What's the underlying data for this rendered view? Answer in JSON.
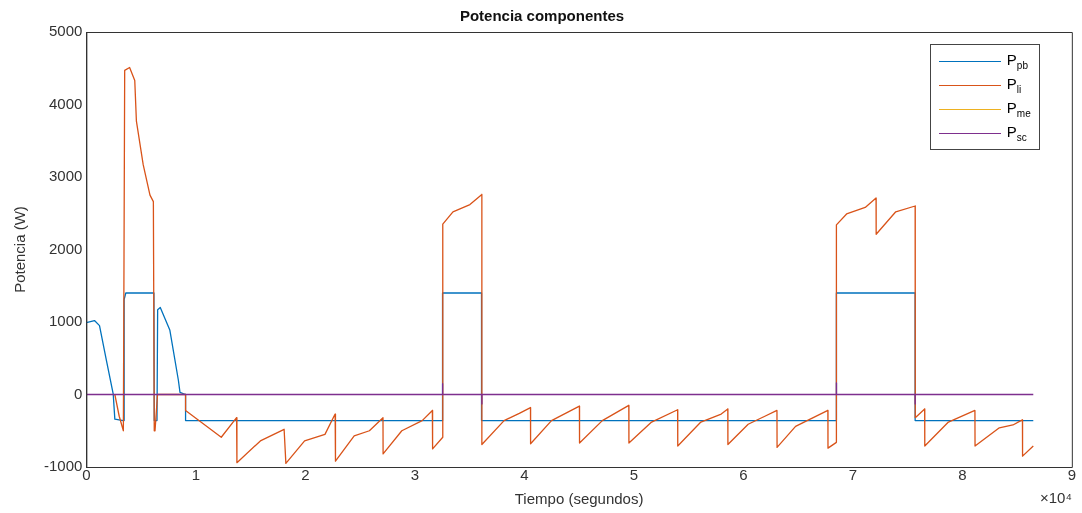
{
  "chart_data": {
    "type": "line",
    "title": "Potencia componentes",
    "xlabel": "Tiempo (segundos)",
    "ylabel": "Potencia (W)",
    "xlim": [
      0,
      9
    ],
    "xticks": [
      0,
      1,
      2,
      3,
      4,
      5,
      6,
      7,
      8,
      9
    ],
    "ylim": [
      -1000,
      5000
    ],
    "yticks": [
      -1000,
      0,
      1000,
      2000,
      3000,
      4000,
      5000
    ],
    "annotations": [
      "×10⁴"
    ],
    "grid": false,
    "legend": "top right",
    "marker": "none",
    "line_style": "solid",
    "series": [
      {
        "name": "P$_{pb}$",
        "color": "#0072bd",
        "x": [
          0,
          0.074,
          0.12,
          0.183,
          0.245,
          0.26,
          0.338,
          0.345,
          0.345,
          0.36,
          0.617,
          0.62,
          0.645,
          0.651,
          0.675,
          0.762,
          0.84,
          0.855,
          0.906,
          0.906,
          3.253,
          3.253,
          3.609,
          3.609,
          6.85,
          6.85,
          7.569,
          7.569,
          8.648
        ],
        "values": [
          990,
          1020,
          950,
          470,
          10,
          -340,
          -360,
          -360,
          1310,
          1400,
          1400,
          -360,
          -360,
          1170,
          1200,
          890,
          200,
          30,
          0,
          -360,
          -360,
          1400,
          1400,
          -360,
          -360,
          1400,
          1400,
          -360,
          -360
        ]
      },
      {
        "name": "P$_{li}$",
        "color": "#d95319",
        "x": [
          0.26,
          0.3,
          0.338,
          0.35,
          0.395,
          0.442,
          0.457,
          0.519,
          0.581,
          0.612,
          0.62,
          0.627,
          0.65,
          0.906,
          0.906,
          1.232,
          1.372,
          1.375,
          1.589,
          1.806,
          1.822,
          1.993,
          2.179,
          2.272,
          2.275,
          2.446,
          2.585,
          2.709,
          2.71,
          2.881,
          3.067,
          3.16,
          3.162,
          3.255,
          3.255,
          3.348,
          3.503,
          3.612,
          3.612,
          3.815,
          3.954,
          4.056,
          4.057,
          4.248,
          4.503,
          4.504,
          4.712,
          4.954,
          4.955,
          5.162,
          5.4,
          5.401,
          5.612,
          5.798,
          5.858,
          5.859,
          6.044,
          6.307,
          6.308,
          6.477,
          6.772,
          6.773,
          6.85,
          6.85,
          6.943,
          7.113,
          7.212,
          7.213,
          7.392,
          7.569,
          7.57,
          7.656,
          7.657,
          7.873,
          8.115,
          8.116,
          8.338,
          8.462,
          8.549,
          8.55,
          8.648
        ],
        "values": [
          0,
          -300,
          -500,
          4470,
          4510,
          4330,
          3770,
          3170,
          2750,
          2660,
          -500,
          -500,
          0,
          0,
          -220,
          -590,
          -320,
          -940,
          -640,
          -480,
          -950,
          -640,
          -550,
          -270,
          -920,
          -570,
          -500,
          -320,
          -820,
          -500,
          -360,
          -220,
          -750,
          -590,
          2350,
          2520,
          2620,
          2760,
          -690,
          -360,
          -260,
          -180,
          -680,
          -360,
          -160,
          -670,
          -360,
          -150,
          -670,
          -380,
          -210,
          -710,
          -380,
          -270,
          -200,
          -690,
          -410,
          -220,
          -730,
          -440,
          -220,
          -740,
          -660,
          2340,
          2490,
          2580,
          2710,
          2210,
          2520,
          2600,
          -320,
          -200,
          -710,
          -380,
          -220,
          -710,
          -460,
          -420,
          -350,
          -850,
          -710
        ]
      },
      {
        "name": "P$_{me}$",
        "color": "#edb120"
      },
      {
        "name": "P$_{sc}$",
        "color": "#7e2f8e",
        "x": [
          0,
          3.253,
          3.253,
          3.254,
          3.612,
          3.612,
          3.613,
          6.85,
          6.85,
          6.851,
          7.569,
          7.569,
          7.57,
          8.648
        ],
        "values": [
          0,
          0,
          150,
          0,
          0,
          -130,
          0,
          0,
          160,
          0,
          0,
          -130,
          0,
          0
        ]
      }
    ]
  }
}
